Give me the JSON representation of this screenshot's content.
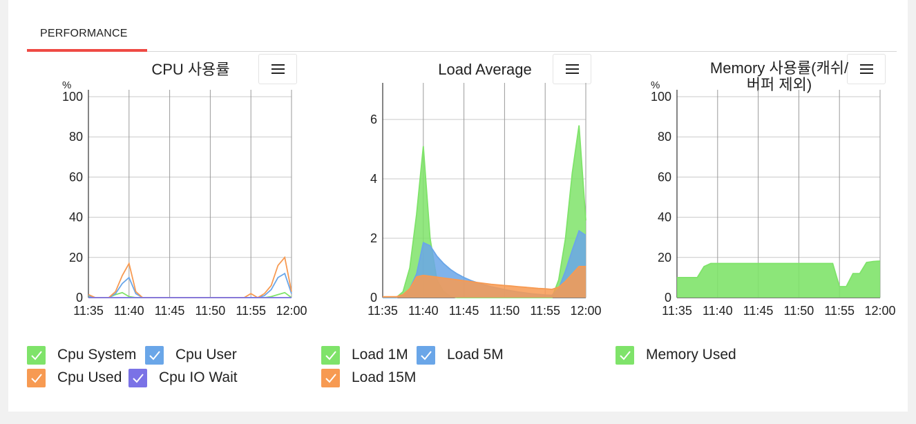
{
  "tab": {
    "label": "PERFORMANCE"
  },
  "colors": {
    "accent": "#ef4a44",
    "green": "#7fe36a",
    "blue": "#6aa6e8",
    "orange": "#f79a52",
    "purple": "#7a72e6"
  },
  "chart_data": [
    {
      "type": "line",
      "title": "CPU 사용률",
      "ylabel": "%",
      "ylim": [
        0,
        100
      ],
      "yticks": [
        "0",
        "20",
        "40",
        "60",
        "80",
        "100"
      ],
      "xticks": [
        "11:35",
        "11:40",
        "11:45",
        "11:50",
        "11:55",
        "12:00"
      ],
      "grid": true,
      "series": [
        {
          "name": "Cpu System",
          "color": "#7fe36a",
          "values": [
            0.5,
            0,
            0,
            0,
            1.5,
            2.5,
            0.5,
            0,
            0,
            0,
            0,
            0,
            0,
            0,
            0,
            0,
            0,
            0,
            0,
            0,
            0,
            0,
            0,
            0,
            0,
            0,
            0,
            0.5,
            1.5,
            2.5,
            0
          ]
        },
        {
          "name": "Cpu User",
          "color": "#6aa6e8",
          "values": [
            1,
            0,
            0,
            0,
            2,
            7,
            10,
            2,
            0,
            0,
            0,
            0,
            0,
            0,
            0,
            0,
            0,
            0,
            0,
            0,
            0,
            0,
            0,
            0,
            0,
            0,
            1,
            4,
            10,
            12,
            2
          ]
        },
        {
          "name": "Cpu Used",
          "color": "#f79a52",
          "values": [
            1.5,
            0,
            0,
            0,
            3,
            11,
            17,
            3,
            0,
            0,
            0,
            0,
            0,
            0,
            0,
            0,
            0,
            0,
            0,
            0,
            0,
            0,
            0,
            0,
            2,
            0,
            2,
            6,
            16,
            20,
            3
          ]
        },
        {
          "name": "Cpu IO Wait",
          "color": "#7a72e6",
          "values": [
            0,
            0,
            0,
            0,
            0,
            0,
            0,
            0,
            0,
            0,
            0,
            0,
            0,
            0,
            0,
            0,
            0,
            0,
            0,
            0,
            0,
            0,
            0,
            0,
            0,
            0,
            0,
            0,
            0,
            0,
            0
          ]
        }
      ]
    },
    {
      "type": "area",
      "title": "Load Average",
      "ylim": [
        0,
        7
      ],
      "yticks": [
        "0",
        "2",
        "4",
        "6"
      ],
      "xticks": [
        "11:35",
        "11:40",
        "11:45",
        "11:50",
        "11:55",
        "12:00"
      ],
      "grid": true,
      "series": [
        {
          "name": "Load 1M",
          "color": "#7fe36a",
          "values": [
            0,
            0,
            0,
            0.2,
            1,
            2.8,
            5.1,
            2,
            0.6,
            0.2,
            0.05,
            0,
            0,
            0,
            0,
            0,
            0,
            0,
            0,
            0,
            0,
            0,
            0,
            0,
            0,
            0,
            0.6,
            2,
            4.2,
            5.8,
            2.6
          ]
        },
        {
          "name": "Load 5M",
          "color": "#6aa6e8",
          "values": [
            0,
            0,
            0,
            0.1,
            0.3,
            0.8,
            1.85,
            1.75,
            1.4,
            1.15,
            0.95,
            0.8,
            0.68,
            0.58,
            0.5,
            0.43,
            0.37,
            0.32,
            0.27,
            0.23,
            0.19,
            0.16,
            0.13,
            0.11,
            0.09,
            0.08,
            0.3,
            0.9,
            1.6,
            2.25,
            2.1
          ]
        },
        {
          "name": "Load 15M",
          "color": "#f79a52",
          "values": [
            0.03,
            0.03,
            0.03,
            0.1,
            0.3,
            0.7,
            0.75,
            0.72,
            0.69,
            0.66,
            0.63,
            0.6,
            0.57,
            0.54,
            0.51,
            0.48,
            0.45,
            0.43,
            0.41,
            0.39,
            0.37,
            0.35,
            0.33,
            0.31,
            0.3,
            0.28,
            0.35,
            0.55,
            0.8,
            1.05,
            1.05
          ]
        }
      ]
    },
    {
      "type": "area",
      "title": "Memory 사용률(캐쉬/버퍼 제외)",
      "title_lines": [
        "Memory 사용률(캐쉬/",
        "버퍼 제외)"
      ],
      "ylabel": "%",
      "ylim": [
        0,
        100
      ],
      "yticks": [
        "0",
        "20",
        "40",
        "60",
        "80",
        "100"
      ],
      "xticks": [
        "11:35",
        "11:40",
        "11:45",
        "11:50",
        "11:55",
        "12:00"
      ],
      "grid": true,
      "series": [
        {
          "name": "Memory Used",
          "color": "#7fe36a",
          "values": [
            10,
            10,
            10,
            10,
            15.5,
            17,
            17,
            17,
            17,
            17,
            17,
            17,
            17,
            17,
            17,
            17,
            17,
            17,
            17,
            17,
            17,
            17,
            17,
            17,
            5.5,
            5.5,
            12,
            12,
            17.5,
            18,
            18.2
          ]
        }
      ]
    }
  ],
  "legends": [
    {
      "items": [
        {
          "label": "Cpu System",
          "color": "#7fe36a"
        },
        {
          "label": "Cpu User",
          "color": "#6aa6e8"
        },
        {
          "label": "Cpu Used",
          "color": "#f79a52"
        },
        {
          "label": "Cpu IO Wait",
          "color": "#7a72e6"
        }
      ]
    },
    {
      "items": [
        {
          "label": "Load 1M",
          "color": "#7fe36a"
        },
        {
          "label": "Load 5M",
          "color": "#6aa6e8"
        },
        {
          "label": "Load 15M",
          "color": "#f79a52"
        }
      ]
    },
    {
      "items": [
        {
          "label": "Memory Used",
          "color": "#7fe36a"
        }
      ]
    }
  ],
  "menu": {
    "icon": "hamburger-menu-icon"
  }
}
